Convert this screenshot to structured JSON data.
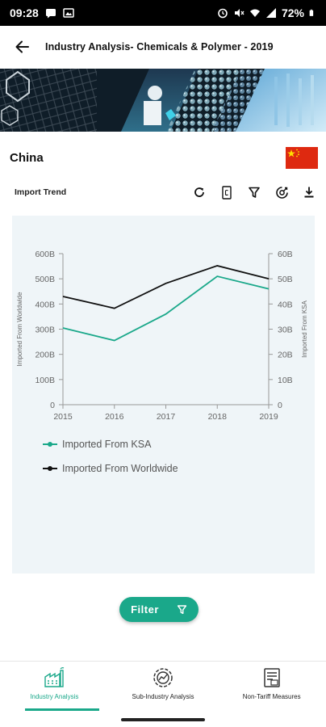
{
  "status_bar": {
    "time": "09:28",
    "battery": "72%"
  },
  "header": {
    "title": "Industry Analysis- Chemicals & Polymer - 2019"
  },
  "country": {
    "name": "China"
  },
  "toolbar": {
    "title": "Import Trend",
    "icons": [
      "refresh-icon",
      "document-icon",
      "filter-icon",
      "analysis-icon",
      "download-icon"
    ]
  },
  "chart_data": {
    "type": "line",
    "x": [
      "2015",
      "2016",
      "2017",
      "2018",
      "2019"
    ],
    "left_axis": {
      "title": "Imported From Worldwide",
      "ticks": [
        "0",
        "100B",
        "200B",
        "300B",
        "400B",
        "500B",
        "600B"
      ],
      "ylim": [
        0,
        600
      ]
    },
    "right_axis": {
      "title": "Imported From KSA",
      "ticks": [
        "0",
        "10B",
        "20B",
        "30B",
        "40B",
        "50B",
        "60B"
      ],
      "ylim": [
        0,
        60
      ]
    },
    "series": [
      {
        "name": "Imported From KSA",
        "axis": "right",
        "color": "#1aa88a",
        "values": [
          30.5,
          25.5,
          36,
          51,
          46
        ]
      },
      {
        "name": "Imported From Worldwide",
        "axis": "left",
        "color": "#111111",
        "values": [
          430,
          383,
          482,
          552,
          500
        ]
      }
    ],
    "grid": false,
    "legend_position": "bottom-left"
  },
  "filter_button": {
    "label": "Filter"
  },
  "bottom_nav": {
    "items": [
      {
        "label": "Industry Analysis",
        "active": true
      },
      {
        "label": "Sub-Industry Analysis",
        "active": false
      },
      {
        "label": "Non-Tariff Measures",
        "active": false
      }
    ]
  },
  "colors": {
    "accent": "#1aa88a",
    "chart_bg": "#eff5f8"
  }
}
